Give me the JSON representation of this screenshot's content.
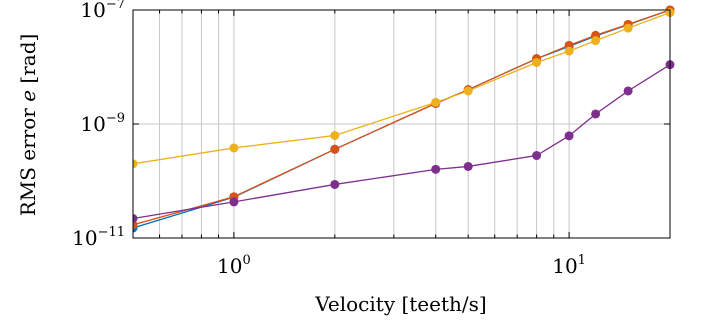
{
  "chart_data": {
    "type": "line",
    "xscale": "log",
    "yscale": "log",
    "xlim": [
      0.5,
      20
    ],
    "ylim": [
      1e-11,
      1e-07
    ],
    "grid": true,
    "xlabel": "Velocity [teeth/s]",
    "ylabel": {
      "prefix": "RMS error ",
      "var": "e",
      "suffix": " [rad]"
    },
    "xticks": [
      {
        "value": 1,
        "base": "10",
        "exp": "0"
      },
      {
        "value": 10,
        "base": "10",
        "exp": "1"
      }
    ],
    "yticks": [
      {
        "value": 1e-11,
        "base": "10",
        "exp": "−11"
      },
      {
        "value": 1e-09,
        "base": "10",
        "exp": "−9"
      },
      {
        "value": 1e-07,
        "base": "10",
        "exp": "−7"
      }
    ],
    "series": [
      {
        "color": "#0072BD",
        "x": [
          0.5,
          1,
          2,
          4,
          5,
          8,
          10,
          12,
          15,
          20
        ],
        "y": [
          1.5e-11,
          5.2e-11,
          3.6e-10,
          2.3e-09,
          4e-09,
          1.4e-08,
          2.3e-08,
          3.5e-08,
          5.5e-08,
          1e-07
        ]
      },
      {
        "color": "#D95319",
        "x": [
          0.5,
          1,
          2,
          4,
          5,
          8,
          10,
          12,
          15,
          20
        ],
        "y": [
          1.7e-11,
          5.3e-11,
          3.6e-10,
          2.3e-09,
          4e-09,
          1.4e-08,
          2.4e-08,
          3.6e-08,
          5.6e-08,
          1e-07
        ]
      },
      {
        "color": "#EDB120",
        "x": [
          0.5,
          1,
          2,
          4,
          5,
          8,
          10,
          12,
          15,
          20
        ],
        "y": [
          2e-10,
          3.8e-10,
          6.3e-10,
          2.4e-09,
          3.8e-09,
          1.2e-08,
          1.9e-08,
          2.9e-08,
          4.8e-08,
          9e-08
        ]
      },
      {
        "color": "#7E2F8E",
        "x": [
          0.5,
          1,
          2,
          4,
          5,
          8,
          10,
          12,
          15,
          20
        ],
        "y": [
          2.2e-11,
          4.3e-11,
          8.7e-11,
          1.6e-10,
          1.8e-10,
          2.8e-10,
          6.2e-10,
          1.5e-09,
          3.8e-09,
          1.1e-08
        ]
      }
    ]
  }
}
